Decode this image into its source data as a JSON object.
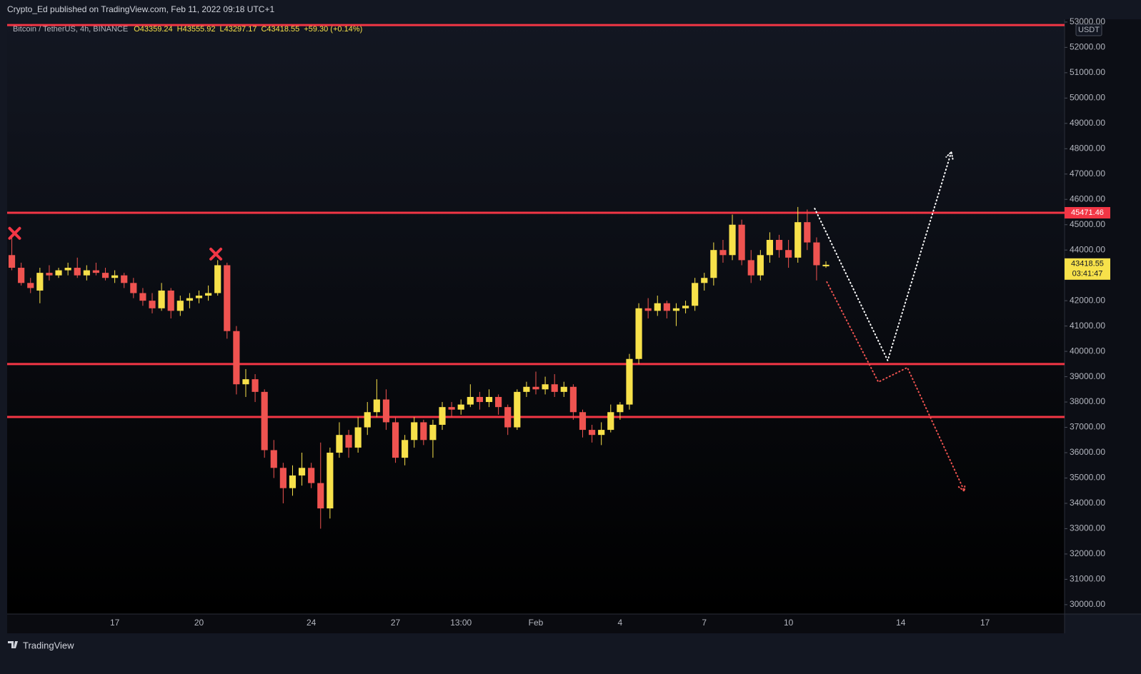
{
  "header": "Crypto_Ed published on TradingView.com, Feb 11, 2022 09:18 UTC+1",
  "footer": "TradingView",
  "chart_data": {
    "type": "candlestick",
    "legend": {
      "symbol": "Bitcoin / TetherUS, 4h, BINANCE",
      "open": "O43359.24",
      "high": "H43555.92",
      "low": "L43297.17",
      "close": "C43418.55",
      "change": "+59.30 (+0.14%)"
    },
    "currency": "USDT",
    "countdown": "03:41:47",
    "categories": [
      null,
      null,
      null,
      null,
      null,
      null,
      null,
      null,
      null,
      null,
      null,
      "17",
      null,
      null,
      null,
      null,
      null,
      null,
      null,
      null,
      "20",
      null,
      null,
      null,
      null,
      null,
      null,
      null,
      null,
      null,
      null,
      null,
      "24",
      null,
      null,
      null,
      null,
      null,
      null,
      null,
      null,
      "27",
      null,
      null,
      null,
      null,
      null,
      null,
      "13:00",
      null,
      null,
      null,
      null,
      null,
      null,
      null,
      "Feb",
      null,
      null,
      null,
      null,
      null,
      null,
      null,
      null,
      "4",
      null,
      null,
      null,
      null,
      null,
      null,
      null,
      null,
      "7",
      null,
      null,
      null,
      null,
      null,
      null,
      null,
      null,
      "10",
      null,
      null,
      null,
      null,
      null,
      null,
      null,
      null,
      null,
      null,
      null,
      "14",
      null,
      null,
      null,
      null,
      null,
      null,
      null,
      null,
      "17",
      null,
      null,
      null,
      null,
      null,
      null,
      null,
      null
    ],
    "open": [
      43800,
      43300,
      42700,
      42400,
      43100,
      43000,
      43200,
      43300,
      43000,
      43200,
      43100,
      42900,
      43000,
      42700,
      42300,
      42000,
      41700,
      42400,
      41600,
      42000,
      42100,
      42200,
      42300,
      43400,
      40800,
      38700,
      38900,
      38400,
      36100,
      35400,
      34600,
      35100,
      35400,
      34800,
      33800,
      36000,
      36700,
      36200,
      37000,
      37600,
      38100,
      37200,
      35800,
      36500,
      37200,
      36500,
      37100,
      37800,
      37700,
      37900,
      38200,
      38000,
      38200,
      37800,
      37000,
      38400,
      38600,
      38500,
      38700,
      38400,
      38600,
      37600,
      36900,
      36700,
      36900,
      37600,
      37900,
      39700,
      41700,
      41600,
      41900,
      41600,
      41700,
      41800,
      42700,
      42900,
      44000,
      43800,
      45000,
      43600,
      43000,
      43800,
      44400,
      44000,
      43700,
      45100,
      44300,
      43359.24,
      null,
      null,
      null,
      null,
      null,
      null,
      null,
      null,
      null,
      null,
      null,
      null,
      null,
      null,
      null,
      null,
      null,
      null,
      null,
      null,
      null,
      null,
      null,
      null,
      null
    ],
    "high": [
      44600,
      43500,
      42900,
      43300,
      43400,
      43300,
      43500,
      43700,
      43400,
      43500,
      43300,
      43200,
      43100,
      42900,
      42500,
      42300,
      42700,
      42500,
      42200,
      42300,
      42400,
      42600,
      43600,
      43500,
      41000,
      39300,
      39100,
      38500,
      36500,
      35600,
      35500,
      36000,
      35600,
      36400,
      36200,
      37200,
      36900,
      37400,
      38000,
      38900,
      38500,
      37400,
      36700,
      37400,
      37300,
      37300,
      38000,
      38000,
      38100,
      38700,
      38400,
      38500,
      38300,
      37900,
      38500,
      38800,
      39200,
      39000,
      39100,
      38800,
      38700,
      37700,
      37100,
      37200,
      37900,
      38000,
      39900,
      41900,
      42100,
      42200,
      42000,
      41900,
      42000,
      42900,
      43100,
      44300,
      44400,
      45400,
      45200,
      44000,
      44000,
      44700,
      44600,
      44400,
      45700,
      45600,
      44500,
      43555.92,
      null,
      null,
      null,
      null,
      null,
      null,
      null,
      null,
      null,
      null,
      null,
      null,
      null,
      null,
      null,
      null,
      null,
      null,
      null,
      null,
      null,
      null,
      null,
      null,
      null
    ],
    "low": [
      43200,
      42600,
      42300,
      41900,
      42800,
      42900,
      43000,
      42900,
      42800,
      43000,
      42800,
      42700,
      42500,
      42100,
      41800,
      41500,
      41600,
      41300,
      41400,
      41700,
      41900,
      42000,
      42200,
      40500,
      38300,
      38200,
      38000,
      35800,
      35000,
      34000,
      34300,
      34700,
      34600,
      33000,
      33400,
      35800,
      35800,
      36000,
      36700,
      37400,
      36900,
      35600,
      35500,
      36200,
      36300,
      35800,
      36900,
      37400,
      37500,
      37800,
      37700,
      37800,
      37500,
      36700,
      36900,
      38200,
      38300,
      38300,
      38200,
      38200,
      37300,
      36600,
      36400,
      36300,
      36800,
      37300,
      37700,
      39500,
      41300,
      41400,
      41300,
      41000,
      41500,
      41600,
      42400,
      42600,
      43500,
      43600,
      43400,
      42700,
      42800,
      43500,
      43700,
      43300,
      43500,
      44000,
      42800,
      43297.17,
      null,
      null,
      null,
      null,
      null,
      null,
      null,
      null,
      null,
      null,
      null,
      null,
      null,
      null,
      null,
      null,
      null,
      null,
      null,
      null,
      null,
      null,
      null,
      null,
      null
    ],
    "close": [
      43300,
      42700,
      42500,
      43100,
      43000,
      43200,
      43300,
      43000,
      43200,
      43100,
      42900,
      43000,
      42700,
      42300,
      42000,
      41700,
      42400,
      41600,
      42000,
      42100,
      42200,
      42300,
      43400,
      40800,
      38700,
      38900,
      38400,
      36100,
      35400,
      34600,
      35100,
      35400,
      34800,
      33800,
      36000,
      36700,
      36200,
      37000,
      37600,
      38100,
      37200,
      35800,
      36500,
      37200,
      36500,
      37100,
      37800,
      37700,
      37900,
      38200,
      38000,
      38200,
      37800,
      37000,
      38400,
      38600,
      38500,
      38700,
      38400,
      38600,
      37600,
      36900,
      36700,
      36900,
      37600,
      37900,
      39700,
      41700,
      41600,
      41900,
      41600,
      41700,
      41800,
      42700,
      42900,
      44000,
      43800,
      45000,
      43600,
      43000,
      43800,
      44400,
      44000,
      43700,
      45100,
      44300,
      43400,
      43418.55,
      null,
      null,
      null,
      null,
      null,
      null,
      null,
      null,
      null,
      null,
      null,
      null,
      null,
      null,
      null,
      null,
      null,
      null,
      null,
      null,
      null,
      null,
      null,
      null,
      null
    ],
    "up_color": "#f7e14a",
    "down_color": "#ef5350",
    "ylim": [
      29630,
      53110
    ],
    "yticks": [
      {
        "value": 30000,
        "label": "30000.00"
      },
      {
        "value": 31000,
        "label": "31000.00"
      },
      {
        "value": 32000,
        "label": "32000.00"
      },
      {
        "value": 33000,
        "label": "33000.00"
      },
      {
        "value": 34000,
        "label": "34000.00"
      },
      {
        "value": 35000,
        "label": "35000.00"
      },
      {
        "value": 36000,
        "label": "36000.00"
      },
      {
        "value": 37000,
        "label": "37000.00"
      },
      {
        "value": 38000,
        "label": "38000.00"
      },
      {
        "value": 39000,
        "label": "39000.00"
      },
      {
        "value": 40000,
        "label": "40000.00"
      },
      {
        "value": 41000,
        "label": "41000.00"
      },
      {
        "value": 42000,
        "label": "42000.00"
      },
      {
        "value": 43000,
        "label": "43000.00"
      },
      {
        "value": 44000,
        "label": "44000.00"
      },
      {
        "value": 45000,
        "label": "45000.00"
      },
      {
        "value": 46000,
        "label": "46000.00"
      },
      {
        "value": 47000,
        "label": "47000.00"
      },
      {
        "value": 48000,
        "label": "48000.00"
      },
      {
        "value": 49000,
        "label": "49000.00"
      },
      {
        "value": 50000,
        "label": "50000.00"
      },
      {
        "value": 51000,
        "label": "51000.00"
      },
      {
        "value": 52000,
        "label": "52000.00"
      },
      {
        "value": 53000,
        "label": "53000.00"
      }
    ],
    "grid": false,
    "levels": [
      {
        "value": 52880,
        "color": "#f23645"
      },
      {
        "value": 45471.46,
        "label": "45471.46",
        "color": "#f23645"
      },
      {
        "value": 39500,
        "color": "#f23645"
      },
      {
        "value": 37410,
        "color": "#f23645"
      }
    ],
    "drawings": [
      {
        "color": "#ffffff",
        "x": [
          85.8,
          93.6,
          100.4
        ],
        "y": [
          45640,
          39640,
          47870
        ]
      },
      {
        "color": "#ef5350",
        "x": [
          87.1,
          92.6,
          95.7,
          101.8
        ],
        "y": [
          42740,
          38790,
          39360,
          34480
        ]
      }
    ],
    "markers": [
      {
        "x": 0.3,
        "y": 44660
      },
      {
        "x": 21.8,
        "y": 43840
      }
    ]
  }
}
